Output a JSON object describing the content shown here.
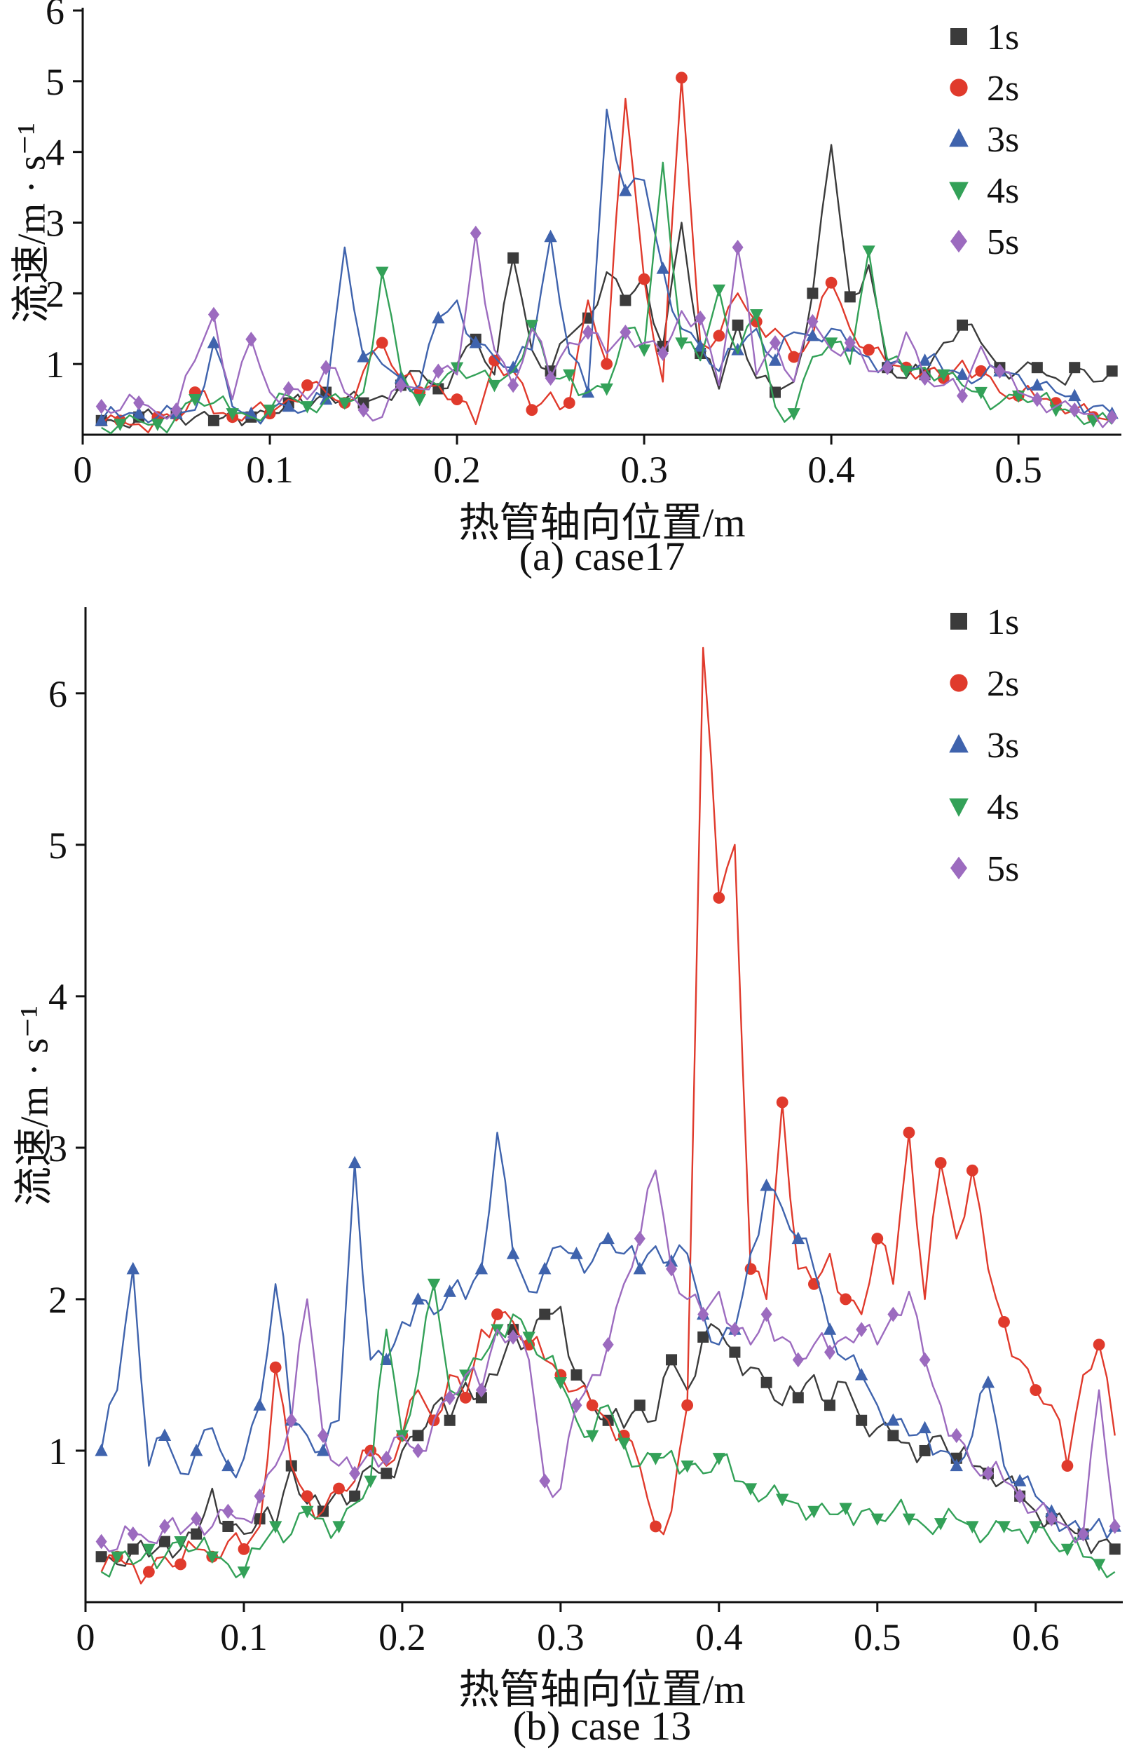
{
  "figure": {
    "ylabel": "流速/m · s⁻¹",
    "xlabel": "热管轴向位置/m"
  },
  "chart_data": [
    {
      "id": "a",
      "type": "line",
      "caption": "(a) case17",
      "xlabel": "热管轴向位置/m",
      "ylabel": "流速/m · s⁻¹",
      "xlim": [
        0,
        0.555
      ],
      "ylim": [
        0,
        6
      ],
      "xticks": [
        0,
        0.1,
        0.2,
        0.3,
        0.4,
        0.5
      ],
      "yticks": [
        1,
        2,
        3,
        4,
        5,
        6
      ],
      "x_start": 0.01,
      "x_step": 0.01,
      "marker_every": 2,
      "grid": false,
      "legend_position": "top-right",
      "series": [
        {
          "name": "1s",
          "color": "#3b3b3b",
          "marker": "square",
          "values": [
            0.2,
            0.15,
            0.25,
            0.2,
            0.3,
            0.25,
            0.2,
            0.35,
            0.25,
            0.3,
            0.45,
            0.35,
            0.6,
            0.5,
            0.45,
            0.55,
            0.7,
            0.9,
            0.65,
            1.0,
            1.35,
            0.85,
            2.5,
            1.2,
            0.9,
            1.4,
            1.65,
            2.3,
            1.9,
            2.25,
            1.25,
            3.0,
            1.15,
            0.65,
            1.55,
            0.8,
            0.6,
            0.75,
            2.0,
            4.1,
            1.95,
            2.4,
            0.95,
            0.8,
            0.85,
            1.3,
            1.55,
            1.3,
            0.95,
            0.9,
            0.95,
            0.8,
            0.95,
            0.75,
            0.9
          ]
        },
        {
          "name": "2s",
          "color": "#e03a2c",
          "marker": "circle",
          "values": [
            0.15,
            0.2,
            0.15,
            0.25,
            0.2,
            0.6,
            0.3,
            0.25,
            0.35,
            0.3,
            0.5,
            0.7,
            0.6,
            0.45,
            0.9,
            1.3,
            0.8,
            0.6,
            0.7,
            0.5,
            0.15,
            1.05,
            0.9,
            0.35,
            0.6,
            0.45,
            1.9,
            1.0,
            4.75,
            2.2,
            0.75,
            5.05,
            1.3,
            1.4,
            2.0,
            1.6,
            1.5,
            1.1,
            1.4,
            2.15,
            1.5,
            1.2,
            1.0,
            0.95,
            0.9,
            0.8,
            1.05,
            0.9,
            0.6,
            0.55,
            0.5,
            0.45,
            0.35,
            0.25,
            0.2
          ]
        },
        {
          "name": "3s",
          "color": "#3f63ad",
          "marker": "triangle-up",
          "values": [
            0.2,
            0.25,
            0.3,
            0.25,
            0.3,
            0.35,
            1.3,
            0.4,
            0.3,
            0.35,
            0.4,
            0.35,
            0.5,
            2.65,
            1.1,
            1.0,
            0.8,
            0.7,
            1.65,
            1.9,
            1.3,
            1.1,
            0.95,
            1.2,
            2.8,
            1.15,
            0.6,
            4.6,
            3.45,
            3.6,
            2.35,
            1.5,
            1.25,
            0.9,
            1.2,
            1.5,
            1.05,
            1.45,
            1.4,
            1.5,
            1.25,
            1.1,
            1.0,
            0.95,
            1.05,
            0.9,
            0.85,
            0.8,
            0.9,
            0.85,
            0.7,
            0.6,
            0.55,
            0.4,
            0.3
          ]
        },
        {
          "name": "4s",
          "color": "#33a158",
          "marker": "triangle-down",
          "values": [
            0.1,
            0.15,
            0.2,
            0.15,
            0.25,
            0.5,
            0.45,
            0.3,
            0.25,
            0.35,
            0.55,
            0.4,
            0.5,
            0.45,
            0.6,
            2.3,
            0.9,
            0.5,
            0.7,
            0.95,
            0.85,
            0.7,
            0.9,
            1.55,
            0.8,
            0.85,
            0.6,
            0.65,
            1.5,
            1.2,
            3.85,
            1.3,
            1.05,
            2.05,
            1.15,
            1.7,
            0.4,
            0.3,
            1.1,
            1.3,
            1.0,
            2.6,
            1.05,
            0.9,
            0.95,
            0.85,
            0.7,
            0.6,
            0.45,
            0.55,
            0.5,
            0.35,
            0.3,
            0.2,
            0.15
          ]
        },
        {
          "name": "5s",
          "color": "#9c6bbf",
          "marker": "diamond",
          "values": [
            0.4,
            0.35,
            0.45,
            0.3,
            0.35,
            1.05,
            1.7,
            0.5,
            1.35,
            0.6,
            0.65,
            0.5,
            0.95,
            0.6,
            0.35,
            0.25,
            0.7,
            0.65,
            0.9,
            0.85,
            2.85,
            1.2,
            0.7,
            1.5,
            0.8,
            1.3,
            1.45,
            1.15,
            1.45,
            1.3,
            1.15,
            1.75,
            1.65,
            0.7,
            2.65,
            0.85,
            1.3,
            0.75,
            1.6,
            1.2,
            1.3,
            0.9,
            0.95,
            1.45,
            0.8,
            0.7,
            0.55,
            1.25,
            0.9,
            0.6,
            0.5,
            0.4,
            0.35,
            0.3,
            0.25
          ]
        }
      ]
    },
    {
      "id": "b",
      "type": "line",
      "caption": "(b) case 13",
      "xlabel": "热管轴向位置/m",
      "ylabel": "流速/m · s⁻¹",
      "xlim": [
        0,
        0.655
      ],
      "ylim": [
        0,
        6.55
      ],
      "xticks": [
        0,
        0.1,
        0.2,
        0.3,
        0.4,
        0.5,
        0.6
      ],
      "yticks": [
        1,
        2,
        3,
        4,
        5,
        6
      ],
      "x_start": 0.01,
      "x_step": 0.01,
      "marker_every": 2,
      "grid": false,
      "legend_position": "top-right",
      "series": [
        {
          "name": "1s",
          "color": "#3b3b3b",
          "marker": "square",
          "values": [
            0.3,
            0.25,
            0.35,
            0.3,
            0.4,
            0.35,
            0.45,
            0.75,
            0.5,
            0.45,
            0.55,
            0.5,
            0.9,
            0.65,
            0.6,
            0.75,
            0.7,
            0.9,
            0.85,
            1.0,
            1.1,
            1.3,
            1.2,
            1.45,
            1.35,
            1.5,
            1.8,
            1.7,
            1.9,
            1.95,
            1.5,
            1.3,
            1.2,
            1.15,
            1.3,
            1.2,
            1.6,
            1.4,
            1.75,
            1.8,
            1.65,
            1.55,
            1.45,
            1.3,
            1.35,
            1.5,
            1.3,
            1.45,
            1.2,
            1.15,
            1.1,
            1.05,
            1.0,
            1.1,
            0.95,
            0.9,
            0.85,
            0.8,
            0.7,
            0.6,
            0.55,
            0.5,
            0.45,
            0.4,
            0.35
          ]
        },
        {
          "name": "2s",
          "color": "#e03a2c",
          "marker": "circle",
          "values": [
            0.2,
            0.3,
            0.25,
            0.2,
            0.3,
            0.25,
            0.35,
            0.3,
            0.4,
            0.35,
            0.5,
            1.55,
            0.9,
            0.7,
            0.6,
            0.75,
            0.8,
            1.0,
            0.9,
            1.1,
            1.4,
            1.2,
            1.5,
            1.35,
            1.8,
            1.9,
            1.85,
            1.7,
            1.6,
            1.5,
            1.4,
            1.3,
            1.2,
            1.1,
            0.9,
            0.5,
            0.6,
            1.3,
            6.3,
            4.65,
            5.0,
            2.2,
            2.0,
            3.3,
            2.2,
            2.1,
            2.3,
            2.0,
            1.9,
            2.4,
            2.1,
            3.1,
            2.0,
            2.9,
            2.4,
            2.85,
            2.2,
            1.85,
            1.6,
            1.4,
            1.3,
            0.9,
            1.5,
            1.7,
            1.1
          ]
        },
        {
          "name": "3s",
          "color": "#3f63ad",
          "marker": "triangle-up",
          "values": [
            1.0,
            1.4,
            2.2,
            0.9,
            1.1,
            0.85,
            1.0,
            1.15,
            0.9,
            0.95,
            1.3,
            2.1,
            1.2,
            1.1,
            1.0,
            1.2,
            2.9,
            1.6,
            1.6,
            1.85,
            2.0,
            1.9,
            2.05,
            2.0,
            2.2,
            3.1,
            2.3,
            2.05,
            2.2,
            2.35,
            2.3,
            2.25,
            2.4,
            2.3,
            2.2,
            2.35,
            2.25,
            2.3,
            1.9,
            1.7,
            1.8,
            2.3,
            2.75,
            2.6,
            2.4,
            2.2,
            1.8,
            1.6,
            1.5,
            1.3,
            1.2,
            1.1,
            1.15,
            1.0,
            0.9,
            1.1,
            1.45,
            0.9,
            0.8,
            0.7,
            0.6,
            0.5,
            0.45,
            0.55,
            0.5
          ]
        },
        {
          "name": "4s",
          "color": "#33a158",
          "marker": "triangle-down",
          "values": [
            0.2,
            0.3,
            0.25,
            0.35,
            0.3,
            0.4,
            0.35,
            0.3,
            0.25,
            0.2,
            0.35,
            0.5,
            0.45,
            0.6,
            0.55,
            0.5,
            0.65,
            0.8,
            1.8,
            1.1,
            1.5,
            2.1,
            1.4,
            1.5,
            1.6,
            1.8,
            1.9,
            1.75,
            1.6,
            1.45,
            1.2,
            1.1,
            1.3,
            1.05,
            0.9,
            0.95,
            1.0,
            0.9,
            0.85,
            0.95,
            0.8,
            0.75,
            0.7,
            0.68,
            0.65,
            0.6,
            0.58,
            0.62,
            0.6,
            0.55,
            0.6,
            0.55,
            0.5,
            0.52,
            0.55,
            0.5,
            0.45,
            0.5,
            0.48,
            0.5,
            0.4,
            0.35,
            0.3,
            0.25,
            0.2
          ]
        },
        {
          "name": "5s",
          "color": "#9c6bbf",
          "marker": "diamond",
          "values": [
            0.4,
            0.35,
            0.45,
            0.4,
            0.5,
            0.45,
            0.55,
            0.5,
            0.6,
            0.55,
            0.7,
            0.9,
            1.2,
            2.0,
            1.1,
            0.9,
            0.85,
            1.0,
            0.95,
            1.1,
            1.0,
            1.2,
            1.35,
            1.5,
            1.4,
            1.8,
            1.75,
            1.6,
            0.8,
            0.75,
            1.3,
            1.5,
            1.7,
            2.1,
            2.4,
            2.85,
            2.2,
            2.0,
            1.9,
            2.05,
            1.8,
            1.7,
            1.9,
            1.75,
            1.6,
            1.7,
            1.65,
            1.75,
            1.8,
            1.7,
            1.9,
            2.05,
            1.6,
            1.3,
            1.1,
            0.9,
            0.85,
            0.8,
            0.7,
            0.6,
            0.55,
            0.5,
            0.45,
            1.4,
            0.5
          ]
        }
      ]
    }
  ]
}
